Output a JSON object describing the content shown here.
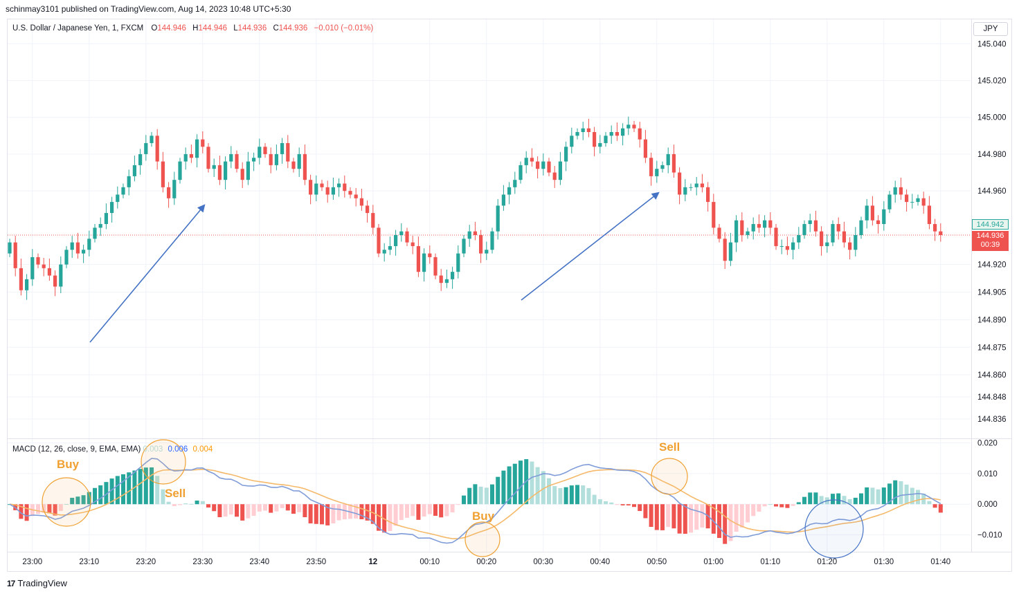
{
  "header": {
    "published_line": "schinmay3101 published on TradingView.com, Aug 14, 2023 10:48 UTC+5:30"
  },
  "legend": {
    "symbol": "U.S. Dollar / Japanese Yen, 1, FXCM",
    "o_label": "O",
    "o_value": "144.946",
    "h_label": "H",
    "h_value": "144.946",
    "l_label": "L",
    "l_value": "144.936",
    "c_label": "C",
    "c_value": "144.936",
    "change": "−0.010 (−0.01%)"
  },
  "currency_button": "JPY",
  "price_tags": {
    "green": "144.942",
    "red_price": "144.936",
    "red_timer": "00:39"
  },
  "macd_legend": {
    "title": "MACD (12, 26, close, 9, EMA, EMA)",
    "hist": "0.003",
    "macd": "0.006",
    "signal": "0.004"
  },
  "annotations": {
    "buy1": "Buy",
    "sell1": "Sell",
    "buy2": "Buy",
    "sell2": "Sell"
  },
  "footer": {
    "brand": "TradingView"
  },
  "colors": {
    "up": "#26a69a",
    "down": "#ef5350",
    "macd": "#7f9cd8",
    "signal": "#f5b969",
    "arrow": "#4472c4",
    "annot": "#f0a030"
  },
  "chart_data": [
    {
      "type": "candlestick",
      "title": "U.S. Dollar / Japanese Yen, 1, FXCM",
      "ylim": [
        144.83,
        145.045
      ],
      "y_ticks": [
        {
          "v": 145.04,
          "t": "145.040"
        },
        {
          "v": 145.02,
          "t": "145.020"
        },
        {
          "v": 145.0,
          "t": "145.000"
        },
        {
          "v": 144.98,
          "t": "144.980"
        },
        {
          "v": 144.96,
          "t": "144.960"
        },
        {
          "v": 144.92,
          "t": "144.920"
        },
        {
          "v": 144.905,
          "t": "144.905"
        },
        {
          "v": 144.89,
          "t": "144.890"
        },
        {
          "v": 144.875,
          "t": "144.875"
        },
        {
          "v": 144.86,
          "t": "144.860"
        },
        {
          "v": 144.848,
          "t": "144.848"
        },
        {
          "v": 144.836,
          "t": "144.836"
        }
      ],
      "x_ticks": [
        {
          "i": 4,
          "t": "23:00"
        },
        {
          "i": 14,
          "t": "23:10"
        },
        {
          "i": 24,
          "t": "23:20"
        },
        {
          "i": 34,
          "t": "23:30"
        },
        {
          "i": 44,
          "t": "23:40"
        },
        {
          "i": 54,
          "t": "23:50"
        },
        {
          "i": 64,
          "t": "12"
        },
        {
          "i": 74,
          "t": "00:10"
        },
        {
          "i": 84,
          "t": "00:20"
        },
        {
          "i": 94,
          "t": "00:30"
        },
        {
          "i": 104,
          "t": "00:40"
        },
        {
          "i": 114,
          "t": "00:50"
        },
        {
          "i": 124,
          "t": "01:00"
        },
        {
          "i": 134,
          "t": "01:10"
        },
        {
          "i": 144,
          "t": "01:20"
        },
        {
          "i": 154,
          "t": "01:30"
        },
        {
          "i": 164,
          "t": "01:40"
        }
      ],
      "current_price": 144.936,
      "ohlc_closes": [
        144.932,
        144.918,
        144.906,
        144.912,
        144.924,
        144.92,
        144.918,
        144.914,
        144.908,
        144.92,
        144.928,
        144.932,
        144.926,
        144.928,
        144.934,
        144.94,
        144.942,
        144.948,
        144.954,
        144.958,
        144.962,
        144.968,
        144.974,
        144.98,
        144.986,
        144.99,
        144.976,
        144.962,
        144.956,
        144.966,
        144.976,
        144.98,
        144.978,
        144.988,
        144.984,
        144.972,
        144.974,
        144.966,
        144.976,
        144.98,
        144.972,
        144.966,
        144.976,
        144.978,
        144.984,
        144.98,
        144.974,
        144.98,
        144.986,
        144.976,
        144.972,
        144.98,
        144.966,
        144.958,
        144.964,
        144.962,
        144.958,
        144.962,
        144.964,
        144.96,
        144.958,
        144.956,
        144.952,
        144.948,
        144.94,
        144.926,
        144.928,
        144.93,
        144.936,
        144.938,
        144.932,
        144.93,
        144.916,
        144.926,
        144.924,
        144.914,
        144.91,
        144.912,
        144.916,
        144.926,
        144.934,
        144.938,
        144.936,
        144.926,
        144.928,
        144.938,
        144.952,
        144.958,
        144.962,
        144.966,
        144.974,
        144.978,
        144.976,
        144.972,
        144.976,
        144.97,
        144.966,
        144.976,
        144.984,
        144.99,
        144.992,
        144.994,
        144.992,
        144.984,
        144.986,
        144.99,
        144.992,
        144.99,
        144.994,
        144.996,
        144.994,
        144.988,
        144.978,
        144.968,
        144.972,
        144.974,
        144.98,
        144.97,
        144.958,
        144.962,
        144.962,
        144.964,
        144.962,
        144.954,
        144.94,
        144.934,
        144.922,
        144.932,
        144.944,
        144.936,
        144.938,
        144.942,
        144.94,
        144.944,
        144.94,
        144.93,
        144.93,
        144.928,
        144.932,
        144.936,
        144.942,
        144.944,
        144.938,
        144.93,
        144.932,
        144.942,
        144.938,
        144.932,
        144.928,
        144.936,
        144.944,
        144.952,
        144.944,
        144.942,
        144.95,
        144.958,
        144.962,
        144.958,
        144.954,
        144.954,
        144.956,
        144.952,
        144.942,
        144.938,
        144.936
      ]
    },
    {
      "type": "line+bar",
      "title": "MACD (12, 26, close, 9, EMA, EMA)",
      "ylim": [
        -0.0155,
        0.021
      ],
      "y_ticks": [
        {
          "v": 0.02,
          "t": "0.020"
        },
        {
          "v": 0.01,
          "t": "0.010"
        },
        {
          "v": 0.0,
          "t": "0.000"
        },
        {
          "v": -0.01,
          "t": "−0.010"
        }
      ],
      "series": [
        {
          "name": "MACD",
          "color": "#7f9cd8"
        },
        {
          "name": "Signal",
          "color": "#f5b969"
        },
        {
          "name": "Histogram",
          "color": "#26a69a"
        }
      ]
    }
  ]
}
